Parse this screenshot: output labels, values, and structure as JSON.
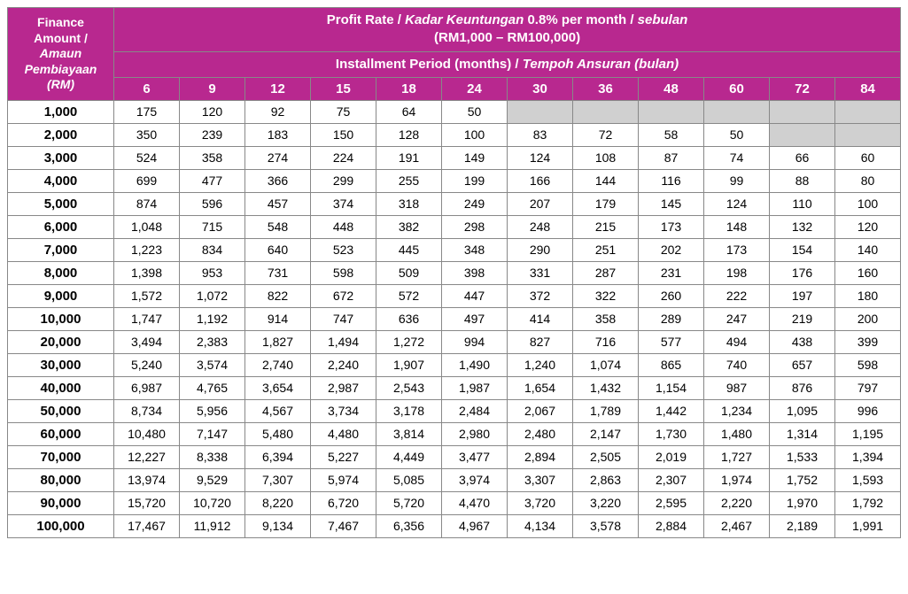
{
  "colors": {
    "header_bg": "#b8288f",
    "header_text": "#ffffff",
    "cell_bg": "#ffffff",
    "empty_bg": "#d0d0d0",
    "border": "#888888"
  },
  "typography": {
    "font_family": "Arial, Helvetica, sans-serif",
    "header_fontsize": 15,
    "cell_fontsize": 14
  },
  "table": {
    "type": "table",
    "left_header": {
      "line1": "Finance",
      "line2": "Amount /",
      "line3_italic": "Amaun",
      "line4_italic": "Pembiayaan",
      "line5_italic": "(RM)"
    },
    "top_title": {
      "line1_a": "Profit Rate / ",
      "line1_b_italic": "Kadar Keuntungan",
      "line1_c": " 0.8% per month / ",
      "line1_d_italic": "sebulan",
      "line2": "(RM1,000 – RM100,000)"
    },
    "sub_title": {
      "a": "Installment Period (months) / ",
      "b_italic": "Tempoh Ansuran (bulan)"
    },
    "columns": [
      "6",
      "9",
      "12",
      "15",
      "18",
      "24",
      "30",
      "36",
      "48",
      "60",
      "72",
      "84"
    ],
    "row_headers": [
      "1,000",
      "2,000",
      "3,000",
      "4,000",
      "5,000",
      "6,000",
      "7,000",
      "8,000",
      "9,000",
      "10,000",
      "20,000",
      "30,000",
      "40,000",
      "50,000",
      "60,000",
      "70,000",
      "80,000",
      "90,000",
      "100,000"
    ],
    "rows": [
      [
        "175",
        "120",
        "92",
        "75",
        "64",
        "50",
        "",
        "",
        "",
        "",
        "",
        ""
      ],
      [
        "350",
        "239",
        "183",
        "150",
        "128",
        "100",
        "83",
        "72",
        "58",
        "50",
        "",
        ""
      ],
      [
        "524",
        "358",
        "274",
        "224",
        "191",
        "149",
        "124",
        "108",
        "87",
        "74",
        "66",
        "60"
      ],
      [
        "699",
        "477",
        "366",
        "299",
        "255",
        "199",
        "166",
        "144",
        "116",
        "99",
        "88",
        "80"
      ],
      [
        "874",
        "596",
        "457",
        "374",
        "318",
        "249",
        "207",
        "179",
        "145",
        "124",
        "110",
        "100"
      ],
      [
        "1,048",
        "715",
        "548",
        "448",
        "382",
        "298",
        "248",
        "215",
        "173",
        "148",
        "132",
        "120"
      ],
      [
        "1,223",
        "834",
        "640",
        "523",
        "445",
        "348",
        "290",
        "251",
        "202",
        "173",
        "154",
        "140"
      ],
      [
        "1,398",
        "953",
        "731",
        "598",
        "509",
        "398",
        "331",
        "287",
        "231",
        "198",
        "176",
        "160"
      ],
      [
        "1,572",
        "1,072",
        "822",
        "672",
        "572",
        "447",
        "372",
        "322",
        "260",
        "222",
        "197",
        "180"
      ],
      [
        "1,747",
        "1,192",
        "914",
        "747",
        "636",
        "497",
        "414",
        "358",
        "289",
        "247",
        "219",
        "200"
      ],
      [
        "3,494",
        "2,383",
        "1,827",
        "1,494",
        "1,272",
        "994",
        "827",
        "716",
        "577",
        "494",
        "438",
        "399"
      ],
      [
        "5,240",
        "3,574",
        "2,740",
        "2,240",
        "1,907",
        "1,490",
        "1,240",
        "1,074",
        "865",
        "740",
        "657",
        "598"
      ],
      [
        "6,987",
        "4,765",
        "3,654",
        "2,987",
        "2,543",
        "1,987",
        "1,654",
        "1,432",
        "1,154",
        "987",
        "876",
        "797"
      ],
      [
        "8,734",
        "5,956",
        "4,567",
        "3,734",
        "3,178",
        "2,484",
        "2,067",
        "1,789",
        "1,442",
        "1,234",
        "1,095",
        "996"
      ],
      [
        "10,480",
        "7,147",
        "5,480",
        "4,480",
        "3,814",
        "2,980",
        "2,480",
        "2,147",
        "1,730",
        "1,480",
        "1,314",
        "1,195"
      ],
      [
        "12,227",
        "8,338",
        "6,394",
        "5,227",
        "4,449",
        "3,477",
        "2,894",
        "2,505",
        "2,019",
        "1,727",
        "1,533",
        "1,394"
      ],
      [
        "13,974",
        "9,529",
        "7,307",
        "5,974",
        "5,085",
        "3,974",
        "3,307",
        "2,863",
        "2,307",
        "1,974",
        "1,752",
        "1,593"
      ],
      [
        "15,720",
        "10,720",
        "8,220",
        "6,720",
        "5,720",
        "4,470",
        "3,720",
        "3,220",
        "2,595",
        "2,220",
        "1,970",
        "1,792"
      ],
      [
        "17,467",
        "11,912",
        "9,134",
        "7,467",
        "6,356",
        "4,967",
        "4,134",
        "3,578",
        "2,884",
        "2,467",
        "2,189",
        "1,991"
      ]
    ]
  }
}
